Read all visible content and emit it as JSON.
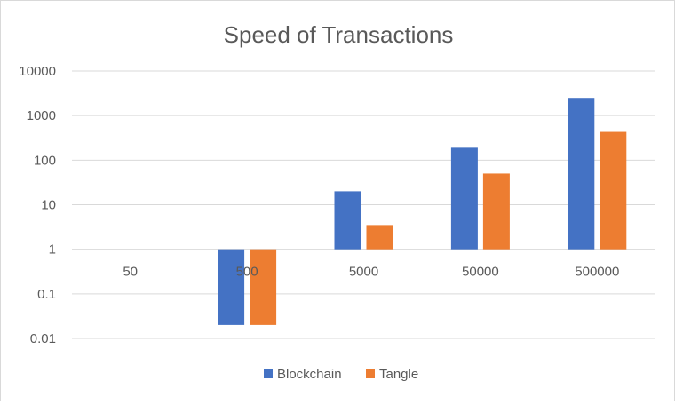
{
  "chart_data": {
    "type": "bar",
    "title": "Speed of Transactions",
    "xlabel": "",
    "ylabel": "",
    "yscale": "log",
    "ylim": [
      0.01,
      10000
    ],
    "yticks": [
      "10000",
      "1000",
      "100",
      "10",
      "1",
      "0.1",
      "0.01"
    ],
    "baseline": 1,
    "categories": [
      "50",
      "500",
      "5000",
      "50000",
      "500000"
    ],
    "series": [
      {
        "name": "Blockchain",
        "color": "#4472C4",
        "values": [
          null,
          0.02,
          20,
          190,
          2500
        ]
      },
      {
        "name": "Tangle",
        "color": "#ED7D31",
        "values": [
          null,
          0.02,
          3.5,
          50,
          430
        ]
      }
    ],
    "legend_position": "bottom",
    "grid": true
  }
}
